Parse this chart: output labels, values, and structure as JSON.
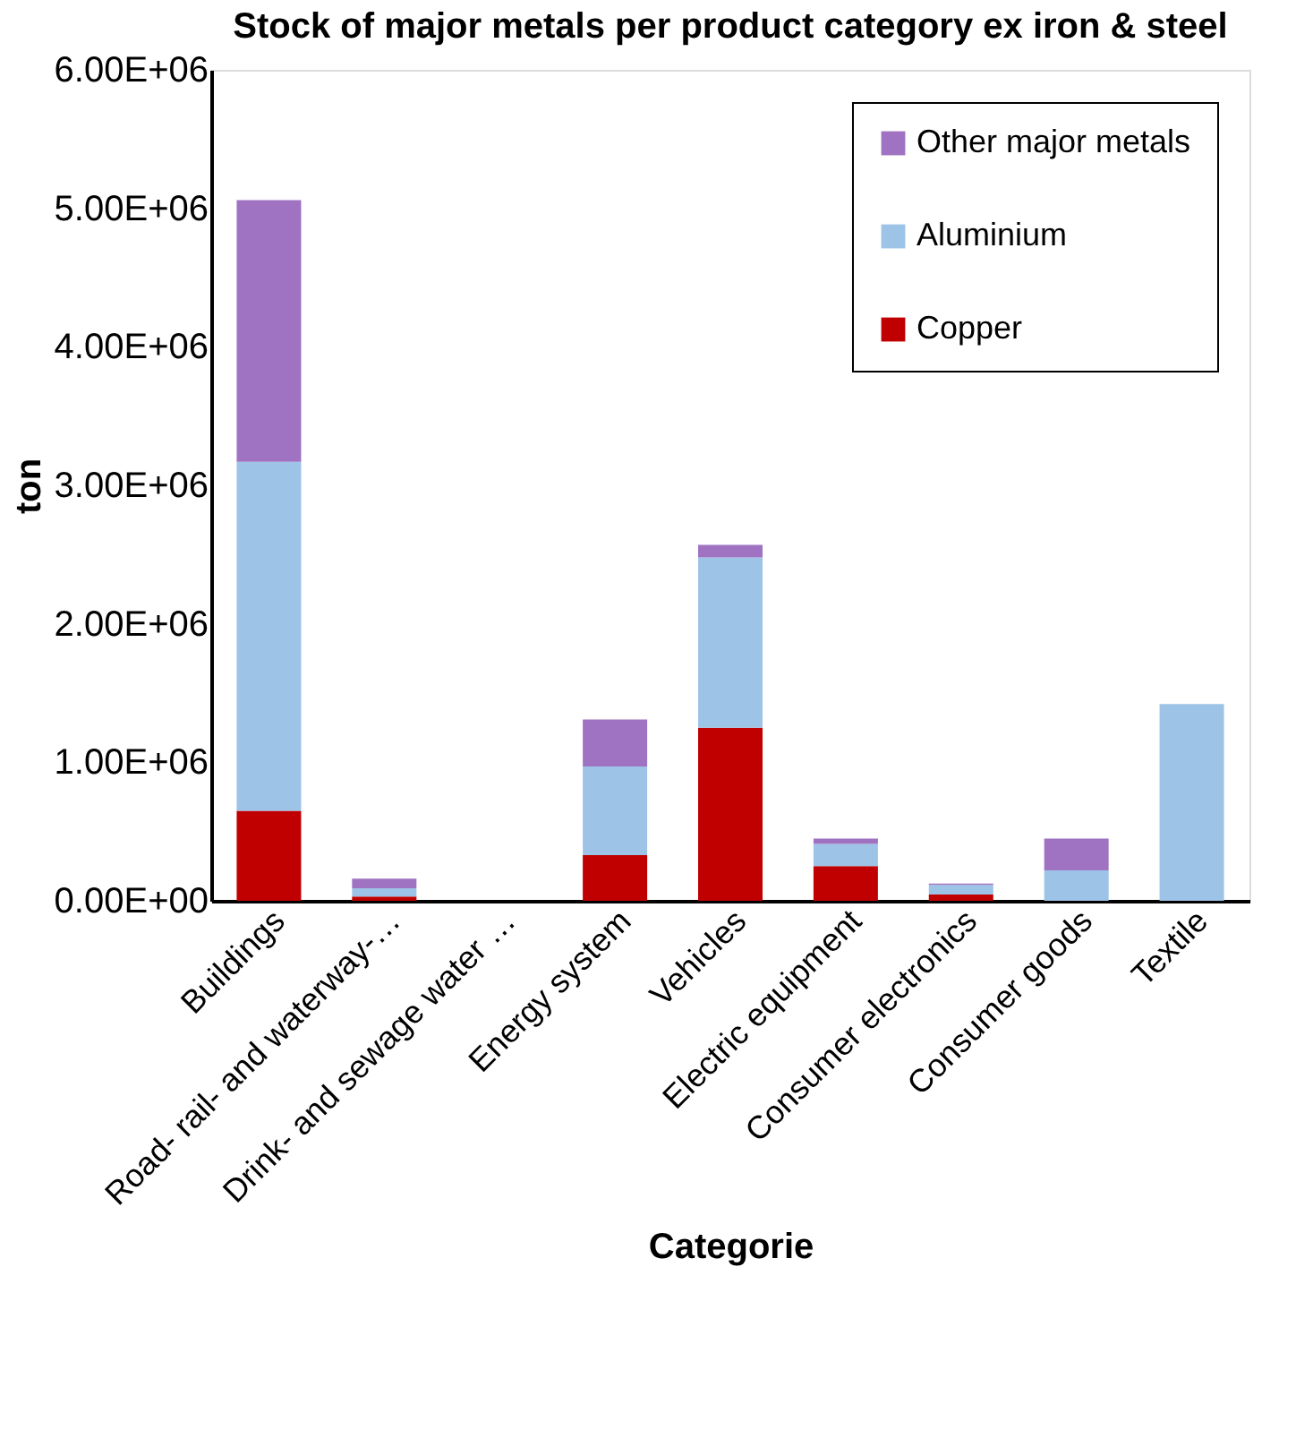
{
  "chart_data": {
    "type": "bar",
    "title": "Stock of major metals per product category ex iron & steel",
    "xlabel": "Categorie",
    "ylabel": "ton",
    "categories": [
      "Buildings",
      "Road- rail- and waterway-…",
      "Drink- and sewage water …",
      "Energy system",
      "Vehicles",
      "Electric equipment",
      "Consumer electronics",
      "Consumer goods",
      "Textile"
    ],
    "stacked": true,
    "series": [
      {
        "name": "Copper",
        "color": "#c00000",
        "values": [
          650000,
          30000,
          0,
          330000,
          1250000,
          250000,
          45000,
          0,
          0
        ]
      },
      {
        "name": "Aluminium",
        "color": "#9dc3e6",
        "values": [
          2520000,
          60000,
          0,
          640000,
          1230000,
          160000,
          70000,
          220000,
          1420000
        ]
      },
      {
        "name": "Other major metals",
        "color": "#a073c2",
        "values": [
          1890000,
          70000,
          0,
          340000,
          90000,
          40000,
          10000,
          230000,
          0
        ]
      }
    ],
    "ylim": [
      0,
      6000000
    ],
    "yticks": [
      {
        "value": 0,
        "label": "0.00E+00"
      },
      {
        "value": 1000000,
        "label": "1.00E+06"
      },
      {
        "value": 2000000,
        "label": "2.00E+06"
      },
      {
        "value": 3000000,
        "label": "3.00E+06"
      },
      {
        "value": 4000000,
        "label": "4.00E+06"
      },
      {
        "value": 5000000,
        "label": "5.00E+06"
      },
      {
        "value": 6000000,
        "label": "6.00E+06"
      }
    ],
    "grid": false,
    "legend": "top right"
  }
}
